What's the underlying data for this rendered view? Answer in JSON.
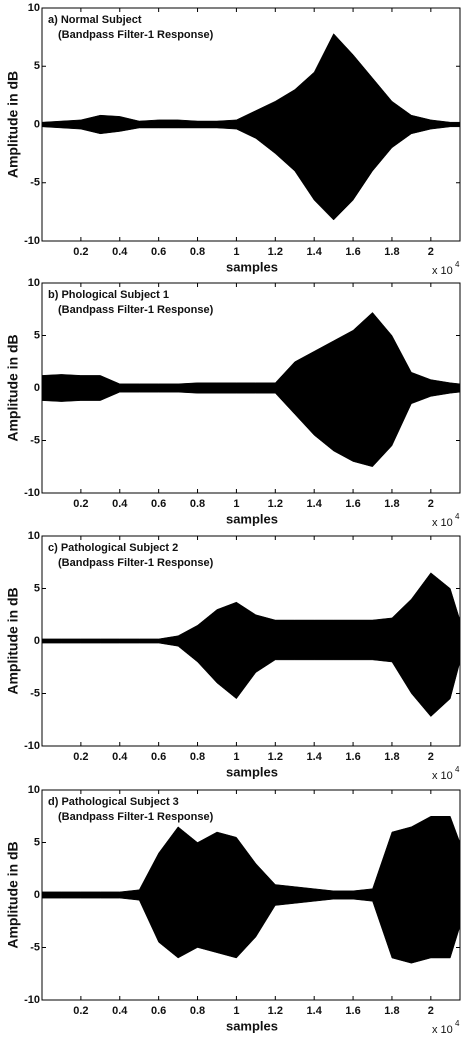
{
  "chart_data": [
    {
      "type": "area",
      "title": "a) Normal Subject",
      "subtitle": "(Bandpass Filter-1 Response)",
      "xlabel": "samples",
      "ylabel": "Amplitude in dB",
      "x_multiplier": {
        "base": "x 10",
        "exponent": "4"
      },
      "x": [
        0,
        0.1,
        0.2,
        0.3,
        0.4,
        0.5,
        0.6,
        0.7,
        0.8,
        0.9,
        1.0,
        1.1,
        1.2,
        1.3,
        1.4,
        1.5,
        1.6,
        1.7,
        1.8,
        1.9,
        2.0,
        2.1,
        2.15
      ],
      "series": [
        {
          "color": "#000000",
          "values": [
            0.2,
            0.3,
            0.4,
            0.8,
            0.7,
            0.3,
            0.4,
            0.4,
            0.3,
            0.3,
            0.4,
            1.2,
            2.0,
            3.0,
            4.5,
            7.8,
            6.0,
            4.0,
            2.0,
            0.8,
            0.4,
            0.2,
            0.2
          ]
        },
        {
          "color": "#000000",
          "values": [
            -0.2,
            -0.3,
            -0.4,
            -0.8,
            -0.6,
            -0.3,
            -0.3,
            -0.3,
            -0.3,
            -0.3,
            -0.4,
            -1.2,
            -2.5,
            -4.0,
            -6.5,
            -8.2,
            -6.5,
            -4.0,
            -2.0,
            -0.8,
            -0.4,
            -0.2,
            -0.2
          ]
        }
      ],
      "xlim": [
        0,
        2.15
      ],
      "xticks": [
        0.2,
        0.4,
        0.6,
        0.8,
        1,
        1.2,
        1.4,
        1.6,
        1.8,
        2
      ],
      "ylim": [
        -10,
        10
      ],
      "yticks": [
        -10,
        -5,
        0,
        5,
        10
      ]
    },
    {
      "type": "area",
      "title": "b) Phological Subject 1",
      "subtitle": "(Bandpass Filter-1 Response)",
      "xlabel": "samples",
      "ylabel": "Amplitude in dB",
      "x_multiplier": {
        "base": "x 10",
        "exponent": "4"
      },
      "x": [
        0,
        0.1,
        0.2,
        0.3,
        0.4,
        0.5,
        0.6,
        0.7,
        0.8,
        0.9,
        1.0,
        1.1,
        1.2,
        1.3,
        1.4,
        1.5,
        1.6,
        1.7,
        1.8,
        1.9,
        2.0,
        2.1,
        2.15
      ],
      "series": [
        {
          "color": "#000000",
          "values": [
            1.2,
            1.3,
            1.2,
            1.2,
            0.4,
            0.4,
            0.4,
            0.4,
            0.5,
            0.5,
            0.5,
            0.5,
            0.5,
            2.5,
            3.5,
            4.5,
            5.5,
            7.2,
            5.0,
            1.5,
            0.8,
            0.5,
            0.4
          ]
        },
        {
          "color": "#000000",
          "values": [
            -1.2,
            -1.3,
            -1.2,
            -1.2,
            -0.4,
            -0.4,
            -0.4,
            -0.4,
            -0.5,
            -0.5,
            -0.5,
            -0.5,
            -0.5,
            -2.5,
            -4.5,
            -6.0,
            -7.0,
            -7.5,
            -5.5,
            -1.5,
            -0.8,
            -0.5,
            -0.4
          ]
        }
      ],
      "xlim": [
        0,
        2.15
      ],
      "xticks": [
        0.2,
        0.4,
        0.6,
        0.8,
        1,
        1.2,
        1.4,
        1.6,
        1.8,
        2
      ],
      "ylim": [
        -10,
        10
      ],
      "yticks": [
        -10,
        -5,
        0,
        5,
        10
      ]
    },
    {
      "type": "area",
      "title": "c) Pathological Subject 2",
      "subtitle": "(Bandpass Filter-1 Response)",
      "xlabel": "samples",
      "ylabel": "Amplitude in dB",
      "x_multiplier": {
        "base": "x 10",
        "exponent": "4"
      },
      "x": [
        0,
        0.1,
        0.2,
        0.3,
        0.4,
        0.5,
        0.6,
        0.7,
        0.8,
        0.9,
        1.0,
        1.1,
        1.2,
        1.3,
        1.4,
        1.5,
        1.6,
        1.7,
        1.8,
        1.9,
        2.0,
        2.1,
        2.15
      ],
      "series": [
        {
          "color": "#000000",
          "values": [
            0.2,
            0.2,
            0.2,
            0.2,
            0.2,
            0.2,
            0.2,
            0.5,
            1.5,
            3.0,
            3.7,
            2.5,
            2.0,
            2.0,
            2.0,
            2.0,
            2.0,
            2.0,
            2.2,
            4.0,
            6.5,
            5.0,
            2.0
          ]
        },
        {
          "color": "#000000",
          "values": [
            -0.2,
            -0.2,
            -0.2,
            -0.2,
            -0.2,
            -0.2,
            -0.2,
            -0.5,
            -2.0,
            -4.0,
            -5.5,
            -3.0,
            -1.8,
            -1.8,
            -1.8,
            -1.8,
            -1.8,
            -1.8,
            -2.0,
            -5.0,
            -7.2,
            -5.5,
            -2.0
          ]
        }
      ],
      "xlim": [
        0,
        2.15
      ],
      "xticks": [
        0.2,
        0.4,
        0.6,
        0.8,
        1,
        1.2,
        1.4,
        1.6,
        1.8,
        2
      ],
      "ylim": [
        -10,
        10
      ],
      "yticks": [
        -10,
        -5,
        0,
        5,
        10
      ]
    },
    {
      "type": "area",
      "title": "d) Pathological Subject 3",
      "subtitle": "(Bandpass Filter-1 Response)",
      "xlabel": "samples",
      "ylabel": "Amplitude in dB",
      "x_multiplier": {
        "base": "x 10",
        "exponent": "4"
      },
      "x": [
        0,
        0.1,
        0.2,
        0.3,
        0.4,
        0.5,
        0.6,
        0.7,
        0.8,
        0.9,
        1.0,
        1.1,
        1.2,
        1.3,
        1.4,
        1.5,
        1.6,
        1.7,
        1.8,
        1.9,
        2.0,
        2.1,
        2.15
      ],
      "series": [
        {
          "color": "#000000",
          "values": [
            0.3,
            0.3,
            0.3,
            0.3,
            0.3,
            0.5,
            4.0,
            6.5,
            5.0,
            6.0,
            5.5,
            3.0,
            1.0,
            0.8,
            0.6,
            0.4,
            0.4,
            0.6,
            6.0,
            6.5,
            7.5,
            7.5,
            5.0
          ]
        },
        {
          "color": "#000000",
          "values": [
            -0.3,
            -0.3,
            -0.3,
            -0.3,
            -0.3,
            -0.5,
            -4.5,
            -6.0,
            -5.0,
            -5.5,
            -6.0,
            -4.0,
            -1.0,
            -0.8,
            -0.6,
            -0.4,
            -0.4,
            -0.6,
            -6.0,
            -6.5,
            -6.0,
            -6.0,
            -3.0
          ]
        }
      ],
      "xlim": [
        0,
        2.15
      ],
      "xticks": [
        0.2,
        0.4,
        0.6,
        0.8,
        1,
        1.2,
        1.4,
        1.6,
        1.8,
        2
      ],
      "ylim": [
        -10,
        10
      ],
      "yticks": [
        -10,
        -5,
        0,
        5,
        10
      ]
    }
  ]
}
